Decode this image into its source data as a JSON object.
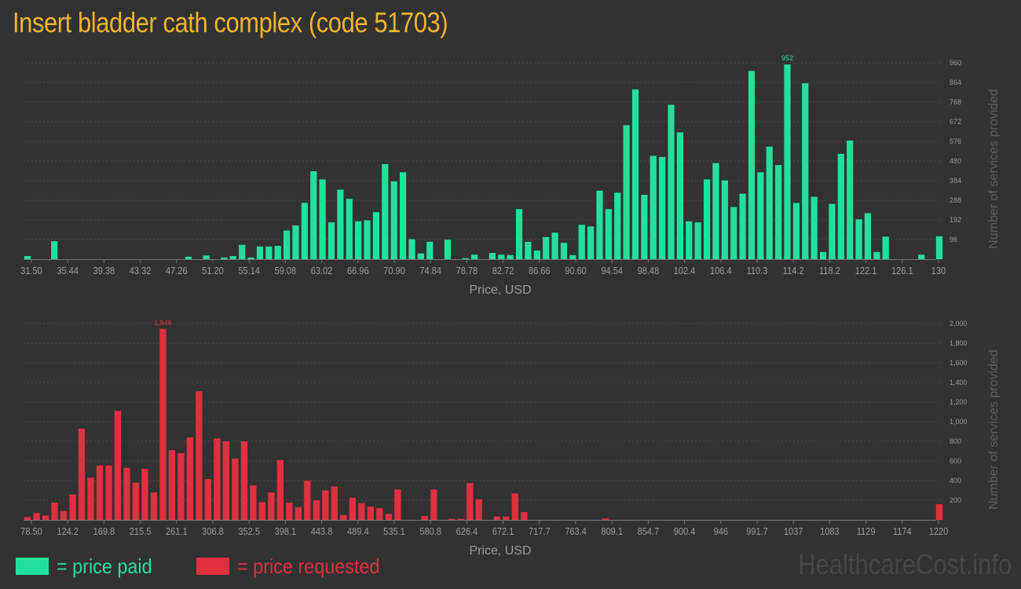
{
  "title": "Insert bladder cath complex (code 51703)",
  "colors": {
    "paid": "#22e09b",
    "requested": "#e0303f",
    "title": "#f0b429",
    "text": "#9a9a9a"
  },
  "legend": {
    "paid": "= price paid",
    "requested": "= price requested"
  },
  "watermark": "HealthcareCost.info",
  "chart_data": [
    {
      "type": "bar",
      "title": "",
      "xlabel": "Price, USD",
      "ylabel": "Number of services provided",
      "ylim": [
        0,
        960
      ],
      "yticks": [
        96,
        192,
        288,
        384,
        480,
        576,
        672,
        768,
        864,
        960
      ],
      "ytick_labels": [
        "96",
        "192",
        "288",
        "384",
        "480",
        "576",
        "672",
        "768",
        "864",
        "960"
      ],
      "xtick_labels": [
        "31.50",
        "35.44",
        "39.38",
        "43.32",
        "47.26",
        "51.20",
        "55.14",
        "59.08",
        "63.02",
        "66.96",
        "70.90",
        "74.84",
        "78.78",
        "82.72",
        "86.66",
        "90.60",
        "94.54",
        "98.48",
        "102.4",
        "106.4",
        "110.3",
        "114.2",
        "118.2",
        "122.1",
        "126.1",
        "130"
      ],
      "peak_label": "952",
      "values": [
        15,
        0,
        0,
        88,
        0,
        0,
        0,
        0,
        0,
        0,
        0,
        0,
        0,
        0,
        0,
        0,
        0,
        0,
        12,
        0,
        18,
        0,
        8,
        15,
        70,
        8,
        62,
        62,
        65,
        140,
        165,
        275,
        430,
        390,
        180,
        340,
        295,
        185,
        190,
        230,
        465,
        380,
        425,
        98,
        28,
        85,
        0,
        95,
        0,
        5,
        22,
        0,
        30,
        22,
        20,
        245,
        85,
        42,
        108,
        130,
        80,
        20,
        168,
        160,
        335,
        245,
        325,
        655,
        830,
        315,
        505,
        500,
        755,
        620,
        185,
        180,
        390,
        470,
        385,
        255,
        320,
        920,
        425,
        550,
        460,
        952,
        275,
        860,
        305,
        35,
        270,
        515,
        580,
        195,
        225,
        35,
        110,
        0,
        0,
        0,
        22,
        0,
        112
      ]
    },
    {
      "type": "bar",
      "title": "",
      "xlabel": "Price, USD",
      "ylabel": "Number of services provided",
      "ylim": [
        0,
        2000
      ],
      "yticks": [
        200,
        400,
        600,
        800,
        1000,
        1200,
        1400,
        1600,
        1800,
        2000
      ],
      "ytick_labels": [
        "200",
        "400",
        "600",
        "800",
        "1,000",
        "1,200",
        "1,400",
        "1,600",
        "1,800",
        "2,000"
      ],
      "xtick_labels": [
        "78.50",
        "124.2",
        "169.8",
        "215.5",
        "261.1",
        "306.8",
        "352.5",
        "398.1",
        "443.8",
        "489.4",
        "535.1",
        "580.8",
        "626.4",
        "672.1",
        "717.7",
        "763.4",
        "809.1",
        "854.7",
        "900.4",
        "946",
        "991.7",
        "1037",
        "1083",
        "1129",
        "1174",
        "1220"
      ],
      "peak_label": "1,946",
      "values": [
        30,
        70,
        45,
        175,
        90,
        260,
        930,
        430,
        555,
        555,
        1110,
        530,
        380,
        520,
        280,
        1946,
        710,
        680,
        840,
        1310,
        415,
        830,
        800,
        625,
        800,
        350,
        180,
        280,
        610,
        175,
        130,
        400,
        200,
        300,
        340,
        50,
        225,
        170,
        135,
        120,
        60,
        310,
        0,
        0,
        40,
        310,
        0,
        10,
        10,
        375,
        210,
        0,
        35,
        35,
        270,
        80,
        0,
        0,
        0,
        0,
        0,
        0,
        0,
        0,
        15,
        0,
        0,
        0,
        0,
        0,
        0,
        0,
        0,
        0,
        0,
        0,
        0,
        0,
        0,
        0,
        0,
        0,
        0,
        0,
        0,
        0,
        0,
        0,
        0,
        0,
        0,
        0,
        0,
        0,
        0,
        0,
        0,
        0,
        0,
        0,
        0,
        160
      ]
    }
  ]
}
